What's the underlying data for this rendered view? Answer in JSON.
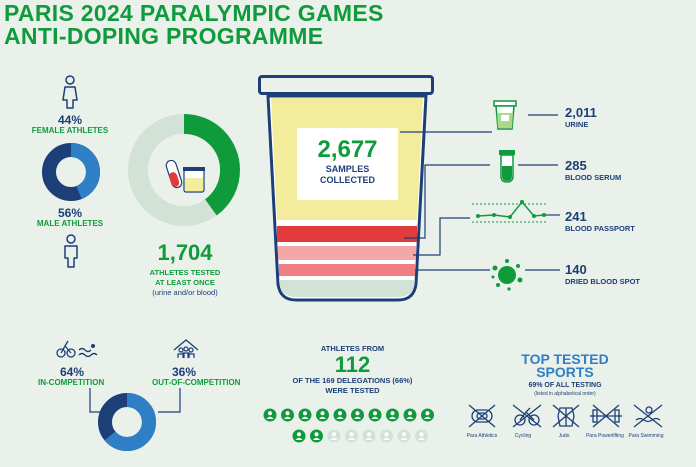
{
  "title": {
    "line1": "PARIS 2024 PARALYMPIC GAMES",
    "line2": "ANTI-DOPING PROGRAMME"
  },
  "gender": {
    "female_pct": "44%",
    "female_label": "FEMALE ATHLETES",
    "male_pct": "56%",
    "male_label": "MALE ATHLETES",
    "female_share": 0.44
  },
  "athletes_tested": {
    "count": "1,704",
    "line1": "ATHLETES TESTED",
    "line2": "AT LEAST ONCE",
    "line3": "(urine and/or blood)",
    "share": 0.4
  },
  "samples": {
    "count": "2,677",
    "line1": "SAMPLES",
    "line2": "COLLECTED",
    "types": [
      {
        "value": "2,011",
        "label": "URINE",
        "icon": "urine-cup-icon"
      },
      {
        "value": "285",
        "label": "BLOOD SERUM",
        "icon": "test-tube-icon"
      },
      {
        "value": "241",
        "label": "BLOOD PASSPORT",
        "icon": "line-graph-icon"
      },
      {
        "value": "140",
        "label": "DRIED BLOOD SPOT",
        "icon": "blood-spot-icon"
      }
    ]
  },
  "competition": {
    "in_pct": "64%",
    "in_label": "IN-COMPETITION",
    "out_pct": "36%",
    "out_label": "OUT-OF-COMPETITION",
    "in_share": 0.64
  },
  "delegations": {
    "label_top": "ATHLETES FROM",
    "count": "112",
    "line1": "OF THE 169 DELEGATIONS (66%)",
    "line2": "WERE TESTED",
    "tested": 112,
    "total": 169
  },
  "top_sports": {
    "title_line1": "TOP TESTED",
    "title_line2": "SPORTS",
    "subtitle": "69% OF ALL TESTING",
    "note": "(listed in alphabetical order)",
    "items": [
      "Para Athletics",
      "Cycling",
      "Judo",
      "Para Powerlifting",
      "Para Swimming"
    ]
  },
  "colors": {
    "green": "#0f9b3c",
    "navy": "#1d3f78",
    "blue": "#2f7fc6",
    "urine": "#f3ec9c",
    "red": "#e23b3b",
    "pink": "#f4a7a7",
    "light_green": "#d3e2d6"
  }
}
